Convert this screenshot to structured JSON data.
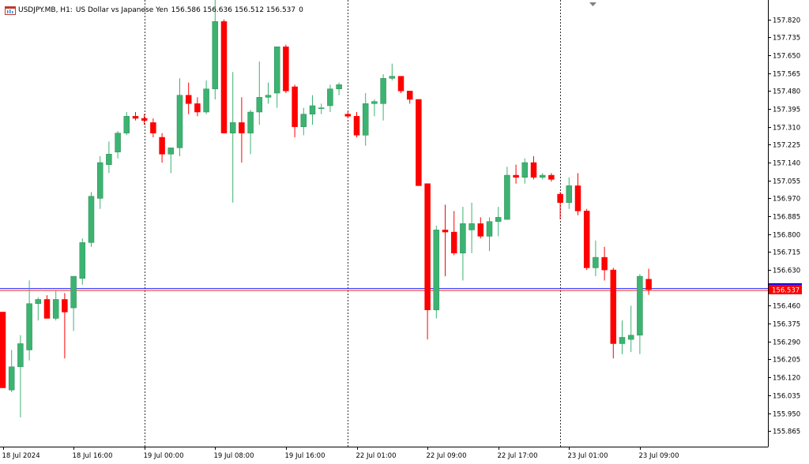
{
  "header": {
    "symbol": "USDJPY.MB, H1:",
    "description": "US Dollar vs Japanese Yen",
    "ohlc": "156.586 156.636 156.512 156.537",
    "tick_volume": "0",
    "icon": "chart-window-icon"
  },
  "colors": {
    "bull": "#3cb371",
    "bear": "#ff0000",
    "axis": "#000000",
    "price_line_blue": "#0000ff",
    "price_line_red": "#ff0000",
    "price_tag_bg": "#ff0000",
    "price_tag_text": "#ffffff",
    "separator": "#000000"
  },
  "chart_data": {
    "type": "candlestick",
    "symbol": "USDJPY.MB",
    "timeframe": "H1",
    "ylim": [
      155.79,
      157.89
    ],
    "y_ticks": [
      "157.820",
      "157.735",
      "157.650",
      "157.565",
      "157.480",
      "157.395",
      "157.310",
      "157.225",
      "157.140",
      "157.055",
      "156.970",
      "156.885",
      "156.800",
      "156.715",
      "156.630",
      "156.546",
      "156.460",
      "156.375",
      "156.290",
      "156.205",
      "156.120",
      "156.035",
      "155.950",
      "155.865"
    ],
    "x_ticks": [
      {
        "index": 0,
        "label": "18 Jul 2024"
      },
      {
        "index": 8,
        "label": "18 Jul 16:00"
      },
      {
        "index": 16,
        "label": "19 Jul 00:00"
      },
      {
        "index": 24,
        "label": "19 Jul 08:00"
      },
      {
        "index": 32,
        "label": "19 Jul 16:00"
      },
      {
        "index": 40,
        "label": "22 Jul 01:00"
      },
      {
        "index": 48,
        "label": "22 Jul 09:00"
      },
      {
        "index": 56,
        "label": "22 Jul 17:00"
      },
      {
        "index": 64,
        "label": "23 Jul 01:00"
      },
      {
        "index": 72,
        "label": "23 Jul 09:00"
      }
    ],
    "day_separators": [
      16,
      39,
      63
    ],
    "current_price": "156.537",
    "candles": [
      {
        "o": 156.43,
        "h": 156.43,
        "l": 156.07,
        "c": 156.07
      },
      {
        "o": 156.06,
        "h": 156.25,
        "l": 156.05,
        "c": 156.17
      },
      {
        "o": 156.17,
        "h": 156.32,
        "l": 155.93,
        "c": 156.28
      },
      {
        "o": 156.25,
        "h": 156.58,
        "l": 156.2,
        "c": 156.47
      },
      {
        "o": 156.47,
        "h": 156.5,
        "l": 156.39,
        "c": 156.49
      },
      {
        "o": 156.49,
        "h": 156.51,
        "l": 156.4,
        "c": 156.4
      },
      {
        "o": 156.4,
        "h": 156.53,
        "l": 156.39,
        "c": 156.49
      },
      {
        "o": 156.49,
        "h": 156.52,
        "l": 156.21,
        "c": 156.43
      },
      {
        "o": 156.45,
        "h": 156.59,
        "l": 156.34,
        "c": 156.6
      },
      {
        "o": 156.59,
        "h": 156.78,
        "l": 156.56,
        "c": 156.76
      },
      {
        "o": 156.76,
        "h": 157.0,
        "l": 156.74,
        "c": 156.98
      },
      {
        "o": 156.97,
        "h": 157.17,
        "l": 156.92,
        "c": 157.14
      },
      {
        "o": 157.13,
        "h": 157.24,
        "l": 157.09,
        "c": 157.18
      },
      {
        "o": 157.19,
        "h": 157.29,
        "l": 157.16,
        "c": 157.28
      },
      {
        "o": 157.28,
        "h": 157.38,
        "l": 157.27,
        "c": 157.36
      },
      {
        "o": 157.36,
        "h": 157.38,
        "l": 157.34,
        "c": 157.35
      },
      {
        "o": 157.35,
        "h": 157.37,
        "l": 157.32,
        "c": 157.34
      },
      {
        "o": 157.33,
        "h": 157.35,
        "l": 157.26,
        "c": 157.28
      },
      {
        "o": 157.26,
        "h": 157.28,
        "l": 157.14,
        "c": 157.18
      },
      {
        "o": 157.18,
        "h": 157.21,
        "l": 157.09,
        "c": 157.21
      },
      {
        "o": 157.21,
        "h": 157.54,
        "l": 157.17,
        "c": 157.46
      },
      {
        "o": 157.46,
        "h": 157.52,
        "l": 157.37,
        "c": 157.42
      },
      {
        "o": 157.42,
        "h": 157.45,
        "l": 157.36,
        "c": 157.38
      },
      {
        "o": 157.38,
        "h": 157.53,
        "l": 157.37,
        "c": 157.49
      },
      {
        "o": 157.49,
        "h": 157.92,
        "l": 157.44,
        "c": 157.81
      },
      {
        "o": 157.81,
        "h": 157.82,
        "l": 157.28,
        "c": 157.28
      },
      {
        "o": 157.28,
        "h": 157.57,
        "l": 156.95,
        "c": 157.33
      },
      {
        "o": 157.33,
        "h": 157.45,
        "l": 157.14,
        "c": 157.28
      },
      {
        "o": 157.28,
        "h": 157.39,
        "l": 157.18,
        "c": 157.38
      },
      {
        "o": 157.38,
        "h": 157.62,
        "l": 157.32,
        "c": 157.45
      },
      {
        "o": 157.45,
        "h": 157.52,
        "l": 157.42,
        "c": 157.46
      },
      {
        "o": 157.47,
        "h": 157.69,
        "l": 157.4,
        "c": 157.69
      },
      {
        "o": 157.69,
        "h": 157.7,
        "l": 157.47,
        "c": 157.48
      },
      {
        "o": 157.5,
        "h": 157.51,
        "l": 157.26,
        "c": 157.31
      },
      {
        "o": 157.31,
        "h": 157.4,
        "l": 157.27,
        "c": 157.37
      },
      {
        "o": 157.37,
        "h": 157.46,
        "l": 157.32,
        "c": 157.41
      },
      {
        "o": 157.4,
        "h": 157.42,
        "l": 157.37,
        "c": 157.4
      },
      {
        "o": 157.41,
        "h": 157.51,
        "l": 157.38,
        "c": 157.49
      },
      {
        "o": 157.49,
        "h": 157.52,
        "l": 157.46,
        "c": 157.51
      },
      {
        "o": 157.37,
        "h": 157.38,
        "l": 157.35,
        "c": 157.36
      },
      {
        "o": 157.36,
        "h": 157.38,
        "l": 157.26,
        "c": 157.27
      },
      {
        "o": 157.27,
        "h": 157.47,
        "l": 157.22,
        "c": 157.42
      },
      {
        "o": 157.42,
        "h": 157.44,
        "l": 157.36,
        "c": 157.43
      },
      {
        "o": 157.42,
        "h": 157.56,
        "l": 157.34,
        "c": 157.54
      },
      {
        "o": 157.54,
        "h": 157.61,
        "l": 157.53,
        "c": 157.55
      },
      {
        "o": 157.55,
        "h": 157.55,
        "l": 157.47,
        "c": 157.48
      },
      {
        "o": 157.48,
        "h": 157.48,
        "l": 157.42,
        "c": 157.44
      },
      {
        "o": 157.44,
        "h": 157.44,
        "l": 157.04,
        "c": 157.03
      },
      {
        "o": 157.04,
        "h": 157.04,
        "l": 156.3,
        "c": 156.44
      },
      {
        "o": 156.44,
        "h": 156.84,
        "l": 156.4,
        "c": 156.82
      },
      {
        "o": 156.82,
        "h": 156.94,
        "l": 156.6,
        "c": 156.81
      },
      {
        "o": 156.81,
        "h": 156.91,
        "l": 156.7,
        "c": 156.71
      },
      {
        "o": 156.71,
        "h": 156.93,
        "l": 156.58,
        "c": 156.85
      },
      {
        "o": 156.82,
        "h": 156.95,
        "l": 156.71,
        "c": 156.85
      },
      {
        "o": 156.85,
        "h": 156.88,
        "l": 156.78,
        "c": 156.79
      },
      {
        "o": 156.79,
        "h": 156.88,
        "l": 156.72,
        "c": 156.86
      },
      {
        "o": 156.86,
        "h": 156.93,
        "l": 156.79,
        "c": 156.88
      },
      {
        "o": 156.87,
        "h": 157.12,
        "l": 156.87,
        "c": 157.08
      },
      {
        "o": 157.08,
        "h": 157.13,
        "l": 157.04,
        "c": 157.07
      },
      {
        "o": 157.07,
        "h": 157.16,
        "l": 157.04,
        "c": 157.14
      },
      {
        "o": 157.14,
        "h": 157.17,
        "l": 157.06,
        "c": 157.07
      },
      {
        "o": 157.07,
        "h": 157.09,
        "l": 157.06,
        "c": 157.08
      },
      {
        "o": 157.08,
        "h": 157.09,
        "l": 157.05,
        "c": 157.06
      },
      {
        "o": 156.99,
        "h": 157.0,
        "l": 156.87,
        "c": 156.95
      },
      {
        "o": 156.95,
        "h": 157.07,
        "l": 156.92,
        "c": 157.03
      },
      {
        "o": 157.03,
        "h": 157.09,
        "l": 156.89,
        "c": 156.91
      },
      {
        "o": 156.91,
        "h": 156.92,
        "l": 156.63,
        "c": 156.64
      },
      {
        "o": 156.64,
        "h": 156.77,
        "l": 156.6,
        "c": 156.69
      },
      {
        "o": 156.69,
        "h": 156.74,
        "l": 156.58,
        "c": 156.63
      },
      {
        "o": 156.63,
        "h": 156.64,
        "l": 156.21,
        "c": 156.28
      },
      {
        "o": 156.28,
        "h": 156.39,
        "l": 156.23,
        "c": 156.31
      },
      {
        "o": 156.3,
        "h": 156.46,
        "l": 156.24,
        "c": 156.32
      },
      {
        "o": 156.32,
        "h": 156.61,
        "l": 156.23,
        "c": 156.6
      },
      {
        "o": 156.586,
        "h": 156.636,
        "l": 156.512,
        "c": 156.537
      }
    ]
  }
}
